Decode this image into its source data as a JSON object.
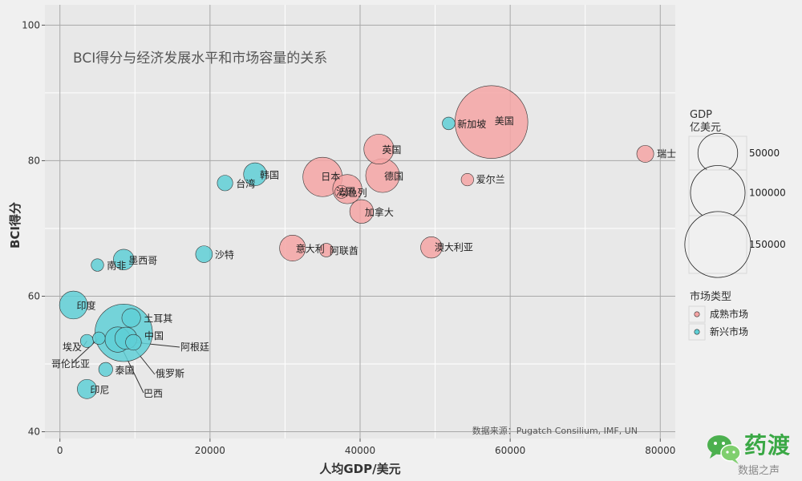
{
  "chart_data": {
    "type": "scatter",
    "title": "BCI得分与经济发展水平和市场容量的关系",
    "xlabel": "人均GDP/美元",
    "ylabel": "BCI得分",
    "xlim": [
      -2000,
      82000
    ],
    "ylim": [
      39,
      103
    ],
    "x_ticks": [
      0,
      20000,
      40000,
      60000,
      80000
    ],
    "x_tick_labels": [
      "0",
      "20000",
      "40000",
      "60000",
      "80000"
    ],
    "y_ticks": [
      40,
      60,
      80,
      100
    ],
    "y_tick_labels": [
      "40",
      "60",
      "80",
      "100"
    ],
    "grid": true,
    "source": "数据来源：Pugatch Consilium, IMF, UN",
    "colors": {
      "成熟市场": "#f4a4a4",
      "新兴市场": "#5fcfd6",
      "panel": "#e8e8e8",
      "grid": "#a8a8a8"
    },
    "legend_size": {
      "title": "GDP\n亿美元",
      "position": "right",
      "values": [
        50000,
        100000,
        150000
      ],
      "labels": [
        "50000",
        "100000",
        "150000"
      ]
    },
    "legend_color": {
      "title": "市场类型",
      "position": "right",
      "entries": [
        "成熟市场",
        "新兴市场"
      ]
    },
    "series": [
      {
        "name": "成熟市场",
        "points": [
          {
            "label": "美国",
            "x": 57500,
            "y": 85.7,
            "gdp": 185000
          },
          {
            "label": "瑞士",
            "x": 78000,
            "y": 81.0,
            "gdp": 6700
          },
          {
            "label": "英国",
            "x": 42500,
            "y": 81.7,
            "gdp": 26500
          },
          {
            "label": "日本",
            "x": 35000,
            "y": 77.6,
            "gdp": 49000
          },
          {
            "label": "德国",
            "x": 43000,
            "y": 77.8,
            "gdp": 35000
          },
          {
            "label": "法国",
            "x": 38300,
            "y": 75.8,
            "gdp": 25000
          },
          {
            "label": "加拿大",
            "x": 40200,
            "y": 72.5,
            "gdp": 15300
          },
          {
            "label": "爱尔兰",
            "x": 54300,
            "y": 77.2,
            "gdp": 2900
          },
          {
            "label": "以色列",
            "x": 37500,
            "y": 75.4,
            "gdp": 3200
          },
          {
            "label": "意大利",
            "x": 31000,
            "y": 67.1,
            "gdp": 19000
          },
          {
            "label": "澳大利亚",
            "x": 49500,
            "y": 67.2,
            "gdp": 12000
          },
          {
            "label": "阿联酋",
            "x": 35500,
            "y": 66.8,
            "gdp": 3700
          }
        ]
      },
      {
        "name": "新兴市场",
        "points": [
          {
            "label": "新加坡",
            "x": 51800,
            "y": 85.5,
            "gdp": 3000
          },
          {
            "label": "韩国",
            "x": 26000,
            "y": 78.0,
            "gdp": 14100
          },
          {
            "label": "台湾",
            "x": 22000,
            "y": 76.7,
            "gdp": 5300
          },
          {
            "label": "沙特",
            "x": 19200,
            "y": 66.2,
            "gdp": 6500
          },
          {
            "label": "墨西哥",
            "x": 8500,
            "y": 65.4,
            "gdp": 11000
          },
          {
            "label": "南非",
            "x": 5000,
            "y": 64.6,
            "gdp": 2900
          },
          {
            "label": "印度",
            "x": 1800,
            "y": 58.7,
            "gdp": 22500
          },
          {
            "label": "土耳其",
            "x": 9500,
            "y": 56.8,
            "gdp": 8600
          },
          {
            "label": "中国",
            "x": 8500,
            "y": 54.6,
            "gdp": 112000
          },
          {
            "label": "俄罗斯",
            "x": 8800,
            "y": 53.8,
            "gdp": 13000
          },
          {
            "label": "巴西",
            "x": 7700,
            "y": 53.6,
            "gdp": 18000
          },
          {
            "label": "阿根廷",
            "x": 9800,
            "y": 53.2,
            "gdp": 5500
          },
          {
            "label": "埃及",
            "x": 3600,
            "y": 53.4,
            "gdp": 3300
          },
          {
            "label": "哥伦比亚",
            "x": 5200,
            "y": 53.8,
            "gdp": 2900
          },
          {
            "label": "泰国",
            "x": 6100,
            "y": 49.2,
            "gdp": 4000
          },
          {
            "label": "印尼",
            "x": 3600,
            "y": 46.3,
            "gdp": 9300
          }
        ]
      }
    ]
  },
  "watermark": {
    "brand": "药渡",
    "tagline": "数据之声",
    "icon": "wechat-icon"
  }
}
